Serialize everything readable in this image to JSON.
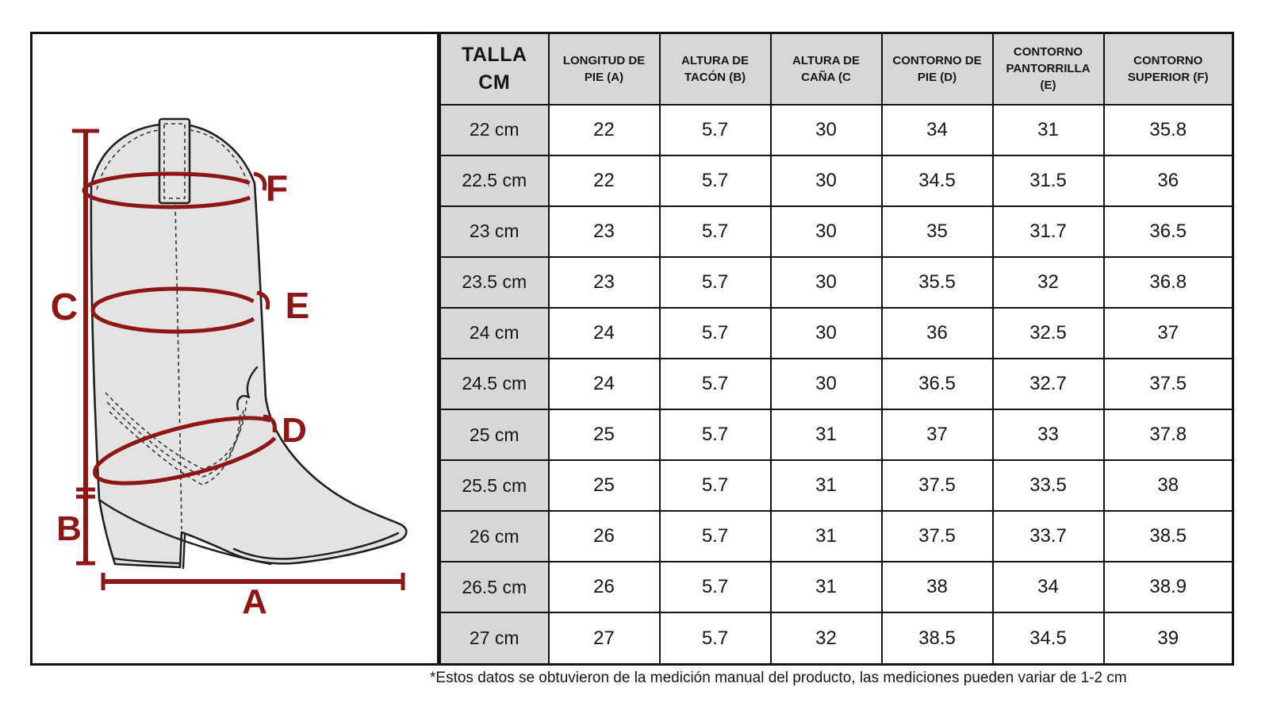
{
  "diagram": {
    "measurement_labels": {
      "A": "A",
      "B": "B",
      "C": "C",
      "D": "D",
      "E": "E",
      "F": "F"
    },
    "accent_color": "#8e1616",
    "boot_fill": "#e3e3e3"
  },
  "table": {
    "size_header": "TALLA CM",
    "column_headers": [
      "LONGITUD DE PIE (A)",
      "ALTURA DE TACÓN (B)",
      "ALTURA DE CAÑA (C",
      "CONTORNO DE PIE (D)",
      "CONTORNO PANTORRILLA (E)",
      "CONTORNO SUPERIOR (F)"
    ],
    "rows": [
      {
        "size": "22 cm",
        "values": [
          "22",
          "5.7",
          "30",
          "34",
          "31",
          "35.8"
        ]
      },
      {
        "size": "22.5 cm",
        "values": [
          "22",
          "5.7",
          "30",
          "34.5",
          "31.5",
          "36"
        ]
      },
      {
        "size": "23 cm",
        "values": [
          "23",
          "5.7",
          "30",
          "35",
          "31.7",
          "36.5"
        ]
      },
      {
        "size": "23.5 cm",
        "values": [
          "23",
          "5.7",
          "30",
          "35.5",
          "32",
          "36.8"
        ]
      },
      {
        "size": "24 cm",
        "values": [
          "24",
          "5.7",
          "30",
          "36",
          "32.5",
          "37"
        ]
      },
      {
        "size": "24.5 cm",
        "values": [
          "24",
          "5.7",
          "30",
          "36.5",
          "32.7",
          "37.5"
        ]
      },
      {
        "size": "25 cm",
        "values": [
          "25",
          "5.7",
          "31",
          "37",
          "33",
          "37.8"
        ]
      },
      {
        "size": "25.5 cm",
        "values": [
          "25",
          "5.7",
          "31",
          "37.5",
          "33.5",
          "38"
        ]
      },
      {
        "size": "26 cm",
        "values": [
          "26",
          "5.7",
          "31",
          "37.5",
          "33.7",
          "38.5"
        ]
      },
      {
        "size": "26.5 cm",
        "values": [
          "26",
          "5.7",
          "31",
          "38",
          "34",
          "38.9"
        ]
      },
      {
        "size": "27 cm",
        "values": [
          "27",
          "5.7",
          "32",
          "38.5",
          "34.5",
          "39"
        ]
      }
    ]
  },
  "footnote": "*Estos datos se obtuvieron de la medición manual del producto, las mediciones pueden variar de 1-2 cm"
}
